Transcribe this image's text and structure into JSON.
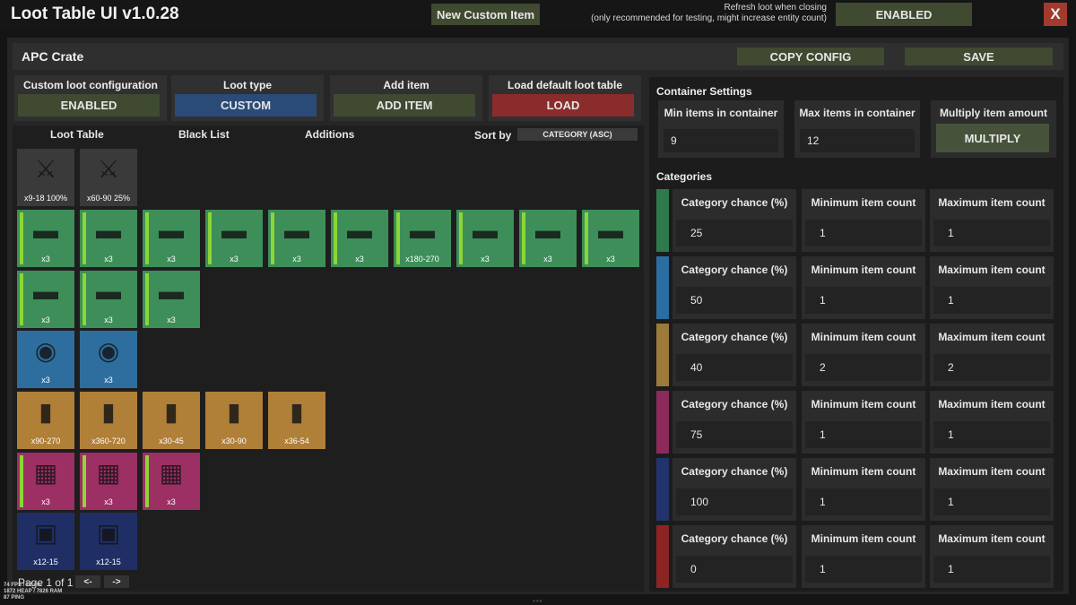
{
  "app": {
    "title": "Loot Table UI v1.0.28",
    "new_item_label": "New Custom Item",
    "refresh_note_line1": "Refresh loot when closing",
    "refresh_note_line2": "(only recommended for testing, might increase entity count)",
    "refresh_value": "ENABLED",
    "close_label": "X"
  },
  "header": {
    "crate_name": "APC Crate",
    "copy_config_label": "COPY CONFIG",
    "save_label": "SAVE"
  },
  "config": [
    {
      "label": "Custom loot configuration",
      "value": "ENABLED",
      "color": "#3f4a31"
    },
    {
      "label": "Loot type",
      "value": "CUSTOM",
      "color": "#2a4b78"
    },
    {
      "label": "Add item",
      "value": "ADD ITEM",
      "color": "#3f4a31"
    },
    {
      "label": "Load default loot table",
      "value": "LOAD",
      "color": "#8b2c2c"
    }
  ],
  "tabs": {
    "loot_table": "Loot Table",
    "black_list": "Black List",
    "additions": "Additions",
    "sort_label": "Sort by",
    "sort_value": "CATEGORY (ASC)"
  },
  "items": {
    "grey": [
      {
        "label": "x9-18 100%",
        "icon": "machete-icon"
      },
      {
        "label": "x60-90 25%",
        "icon": "flower-bundle-icon"
      }
    ],
    "green": [
      {
        "label": "x3",
        "icon": "assault-rifle-icon"
      },
      {
        "label": "x3",
        "icon": "pistol-icon"
      },
      {
        "label": "x3",
        "icon": "rifle-icon"
      },
      {
        "label": "x3",
        "icon": "mounted-gun-icon"
      },
      {
        "label": "x3",
        "icon": "grenade-launcher-icon"
      },
      {
        "label": "x3",
        "icon": "sniper-rifle-icon"
      },
      {
        "label": "x180-270",
        "icon": "ammo-shell-icon"
      },
      {
        "label": "x3",
        "icon": "smg-icon"
      },
      {
        "label": "x3",
        "icon": "custom-rifle-icon"
      },
      {
        "label": "x3",
        "icon": "shotgun-icon"
      },
      {
        "label": "x3",
        "icon": "hunting-rifle-icon"
      },
      {
        "label": "x3",
        "icon": "ak-rifle-icon"
      },
      {
        "label": "x3",
        "icon": "painted-rifle-icon"
      }
    ],
    "blue": [
      {
        "label": "x3",
        "icon": "scope-icon"
      },
      {
        "label": "x3",
        "icon": "armor-plate-icon"
      }
    ],
    "yellow": [
      {
        "label": "x90-270",
        "icon": "rocket-ammo-icon"
      },
      {
        "label": "x360-720",
        "icon": "bullet-icon"
      },
      {
        "label": "x30-45",
        "icon": "rocket-icon"
      },
      {
        "label": "x30-90",
        "icon": "explosive-pack-icon"
      },
      {
        "label": "x36-54",
        "icon": "grenade-icon"
      }
    ],
    "pink": [
      {
        "label": "x3",
        "icon": "door-icon"
      },
      {
        "label": "x3",
        "icon": "floor-panel-icon"
      },
      {
        "label": "x3",
        "icon": "wall-panel-icon"
      }
    ],
    "navy": [
      {
        "label": "x12-15",
        "icon": "turret-icon"
      },
      {
        "label": "x12-15",
        "icon": "camera-icon"
      }
    ]
  },
  "pagination": {
    "text": "Page 1 of 1",
    "prev": "<-",
    "next": "->"
  },
  "debug": {
    "line1": "74 FPS / 12 ms",
    "line2": "1872 HEAP / 7826 RAM",
    "line3": "87 PING"
  },
  "container": {
    "title": "Container Settings",
    "min_label": "Min items in container",
    "min_value": "9",
    "max_label": "Max items in container",
    "max_value": "12",
    "multiply_label": "Multiply item amount",
    "multiply_button": "MULTIPLY"
  },
  "categories": {
    "title": "Categories",
    "chance_label": "Category chance (%)",
    "min_label": "Minimum item count",
    "max_label": "Maximum item count",
    "rows": [
      {
        "color": "#2f7a4c",
        "chance": "25",
        "min": "1",
        "max": "1"
      },
      {
        "color": "#2a6da0",
        "chance": "50",
        "min": "1",
        "max": "1"
      },
      {
        "color": "#9c7a3a",
        "chance": "40",
        "min": "2",
        "max": "2"
      },
      {
        "color": "#8c2a5a",
        "chance": "75",
        "min": "1",
        "max": "1"
      },
      {
        "color": "#22336b",
        "chance": "100",
        "min": "1",
        "max": "1"
      },
      {
        "color": "#8c2424",
        "chance": "0",
        "min": "1",
        "max": "1"
      }
    ]
  }
}
